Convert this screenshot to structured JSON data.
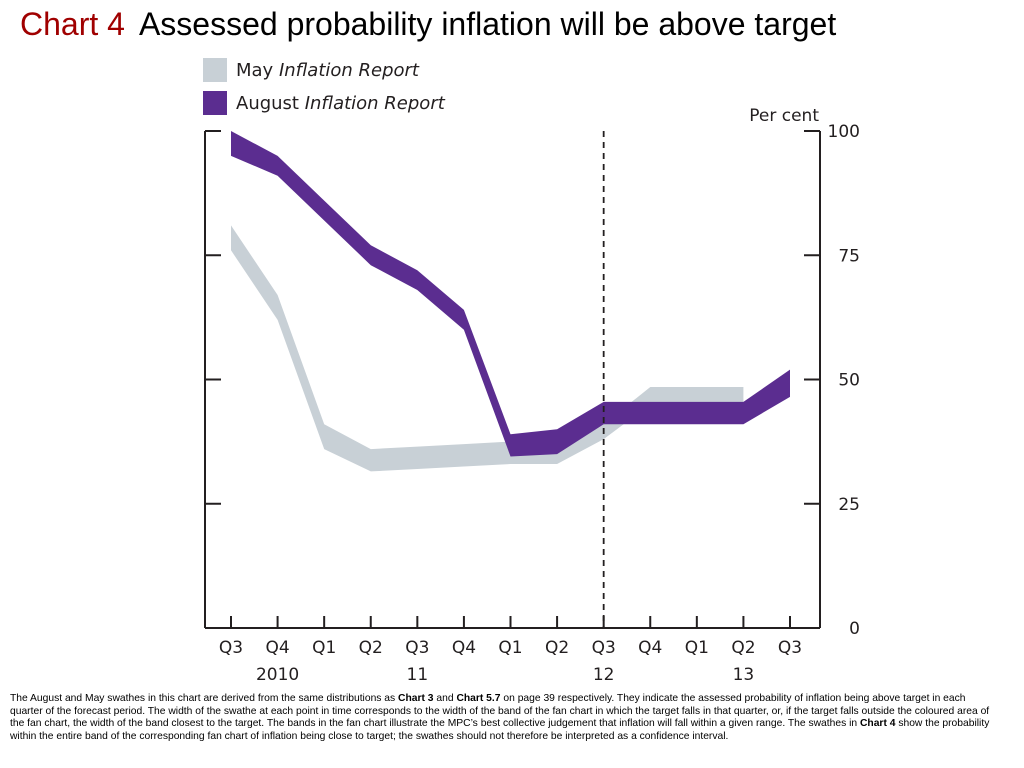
{
  "title": {
    "number": "Chart 4",
    "text": "Assessed probability inflation will be above target"
  },
  "chart_data": {
    "type": "area",
    "subtype": "band",
    "ylabel": "Per cent",
    "ylim": [
      0,
      100
    ],
    "yticks": [
      "0",
      "25",
      "50",
      "75",
      "100"
    ],
    "x": [
      "Q3",
      "Q4",
      "Q1",
      "Q2",
      "Q3",
      "Q4",
      "Q1",
      "Q2",
      "Q3",
      "Q4",
      "Q1",
      "Q2",
      "Q3"
    ],
    "year_labels": [
      {
        "label": "2010",
        "at_index": 1
      },
      {
        "label": "11",
        "at_index": 4
      },
      {
        "label": "12",
        "at_index": 8
      },
      {
        "label": "13",
        "at_index": 11
      }
    ],
    "vertical_dashed_line_at_index": 8,
    "series": [
      {
        "legend_prefix": "May",
        "legend_italic": "Inflation Report",
        "color": "#c8d0d6",
        "x_indices": [
          0,
          1,
          2,
          3,
          4,
          5,
          6,
          7,
          8,
          9,
          10,
          11
        ],
        "upper": [
          81,
          67,
          41,
          36,
          36.5,
          37,
          37.5,
          37,
          41,
          48.5,
          48.5,
          48.5
        ],
        "lower": [
          76,
          62,
          36,
          31.5,
          32,
          32.5,
          33,
          33,
          38,
          45,
          45,
          45
        ]
      },
      {
        "legend_prefix": "August",
        "legend_italic": "Inflation Report",
        "color": "#5b2d90",
        "x_indices": [
          0,
          1,
          2,
          3,
          4,
          5,
          6,
          7,
          8,
          9,
          10,
          11,
          12
        ],
        "upper": [
          100,
          95,
          86,
          77,
          72,
          64,
          39,
          40,
          45.5,
          45.5,
          45.5,
          45.5,
          52
        ],
        "lower": [
          95,
          91,
          82,
          73,
          68,
          60,
          34.5,
          35,
          41,
          41,
          41,
          41,
          46.5
        ]
      }
    ]
  },
  "caption": [
    {
      "t": "The August and May swathes in this chart are derived from the same distributions as ",
      "b": false
    },
    {
      "t": "Chart 3",
      "b": true
    },
    {
      "t": " and ",
      "b": false
    },
    {
      "t": "Chart 5.7",
      "b": true
    },
    {
      "t": " on page 39 respectively.  They indicate the assessed probability of inflation being above target in each quarter of the forecast period.  The width of the swathe at each point in time corresponds to the width of the band of the fan chart in which the target falls in that quarter, or, if the target falls outside the coloured area of the fan chart, the width of the band closest to the target.  The bands in the fan chart illustrate the MPC’s best collective judgement that inflation will fall within a given range.  The swathes in ",
      "b": false
    },
    {
      "t": "Chart 4",
      "b": true
    },
    {
      "t": " show the probability within the entire band of the corresponding fan chart of inflation being close to target;  the swathes should not therefore be interpreted as a confidence interval.",
      "b": false
    }
  ]
}
